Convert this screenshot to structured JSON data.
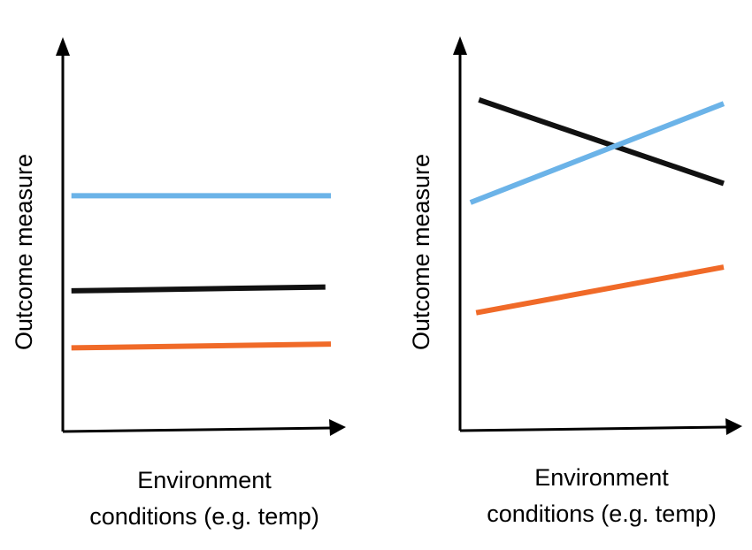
{
  "chart_data": [
    {
      "type": "line",
      "xlabel": "Environment conditions (e.g. temp)",
      "xlabel_lines": [
        "Environment",
        "conditions (e.g. temp)"
      ],
      "ylabel": "Outcome measure",
      "xlim": [
        0,
        1
      ],
      "ylim": [
        0,
        1
      ],
      "grid": false,
      "series": [
        {
          "color": "#6bb3e8",
          "x": [
            0.06,
            1.0
          ],
          "values": [
            0.62,
            0.62
          ]
        },
        {
          "color": "#111111",
          "x": [
            0.06,
            0.98
          ],
          "values": [
            0.37,
            0.38
          ]
        },
        {
          "color": "#f06a28",
          "x": [
            0.06,
            1.0
          ],
          "values": [
            0.22,
            0.23
          ]
        }
      ]
    },
    {
      "type": "line",
      "xlabel": "Environment conditions (e.g. temp)",
      "xlabel_lines": [
        "Environment",
        "conditions (e.g. temp)"
      ],
      "ylabel": "Outcome measure",
      "xlim": [
        0,
        1
      ],
      "ylim": [
        0,
        1
      ],
      "grid": false,
      "series": [
        {
          "color": "#111111",
          "x": [
            0.13,
            1.0
          ],
          "values": [
            0.87,
            0.65
          ]
        },
        {
          "color": "#6bb3e8",
          "x": [
            0.1,
            1.0
          ],
          "values": [
            0.6,
            0.86
          ]
        },
        {
          "color": "#f06a28",
          "x": [
            0.12,
            1.0
          ],
          "values": [
            0.31,
            0.43
          ]
        }
      ]
    }
  ]
}
